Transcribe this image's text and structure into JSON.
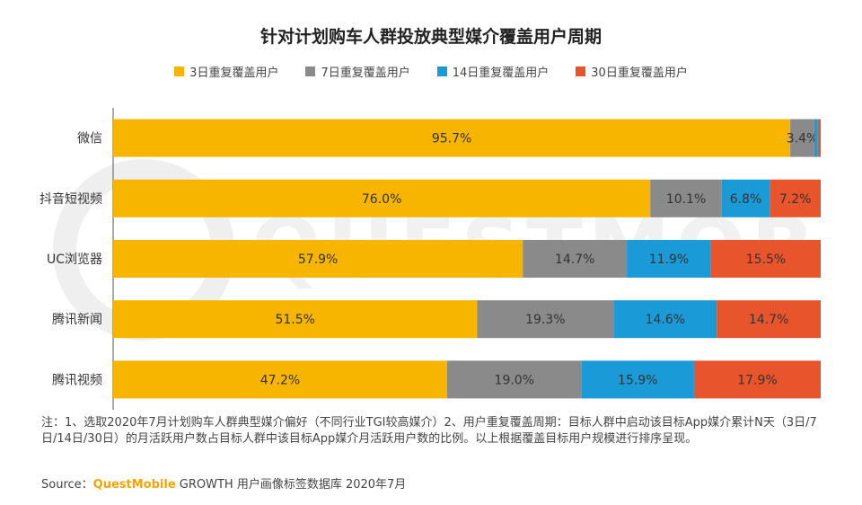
{
  "chart_data": {
    "type": "bar",
    "orientation": "horizontal",
    "stacked": true,
    "title": "针对计划购车人群投放典型媒介覆盖用户周期",
    "categories": [
      "微信",
      "抖音短视频",
      "UC浏览器",
      "腾讯新闻",
      "腾讯视频"
    ],
    "series": [
      {
        "name": "3日重复覆盖用户",
        "color": "#f8b500",
        "values": [
          95.7,
          76.0,
          57.9,
          51.5,
          47.2
        ]
      },
      {
        "name": "7日重复覆盖用户",
        "color": "#8a8a8a",
        "values": [
          3.4,
          10.1,
          14.7,
          19.3,
          19.0
        ]
      },
      {
        "name": "14日重复覆盖用户",
        "color": "#1a9bd7",
        "values": [
          0.5,
          6.8,
          11.9,
          14.6,
          15.9
        ]
      },
      {
        "name": "30日重复覆盖用户",
        "color": "#e8542b",
        "values": [
          0.4,
          7.2,
          15.5,
          14.7,
          17.9
        ]
      }
    ],
    "data_labels": [
      [
        "95.7%",
        "3.4%",
        "",
        ""
      ],
      [
        "76.0%",
        "10.1%",
        "6.8%",
        "7.2%"
      ],
      [
        "57.9%",
        "14.7%",
        "11.9%",
        "15.5%"
      ],
      [
        "51.5%",
        "19.3%",
        "14.6%",
        "14.7%"
      ],
      [
        "47.2%",
        "19.0%",
        "15.9%",
        "17.9%"
      ]
    ],
    "xlim": [
      0,
      100
    ],
    "unit": "%",
    "legend_position": "top",
    "grid": false
  },
  "watermark": "QUESTMOBILE",
  "notes": "注：1、选取2020年7月计划购车人群典型媒介偏好（不同行业TGI较高媒介）2、用户重复覆盖周期：目标人群中启动该目标App媒介累计N天（3日/7日/14日/30日）的月活跃用户数占目标人群中该目标App媒介月活跃用户数的比例。以上根据覆盖目标用户规模进行排序呈现。",
  "source": {
    "prefix": "Source：",
    "brand": "QuestMobile",
    "rest": " GROWTH 用户画像标签数据库 2020年7月"
  }
}
